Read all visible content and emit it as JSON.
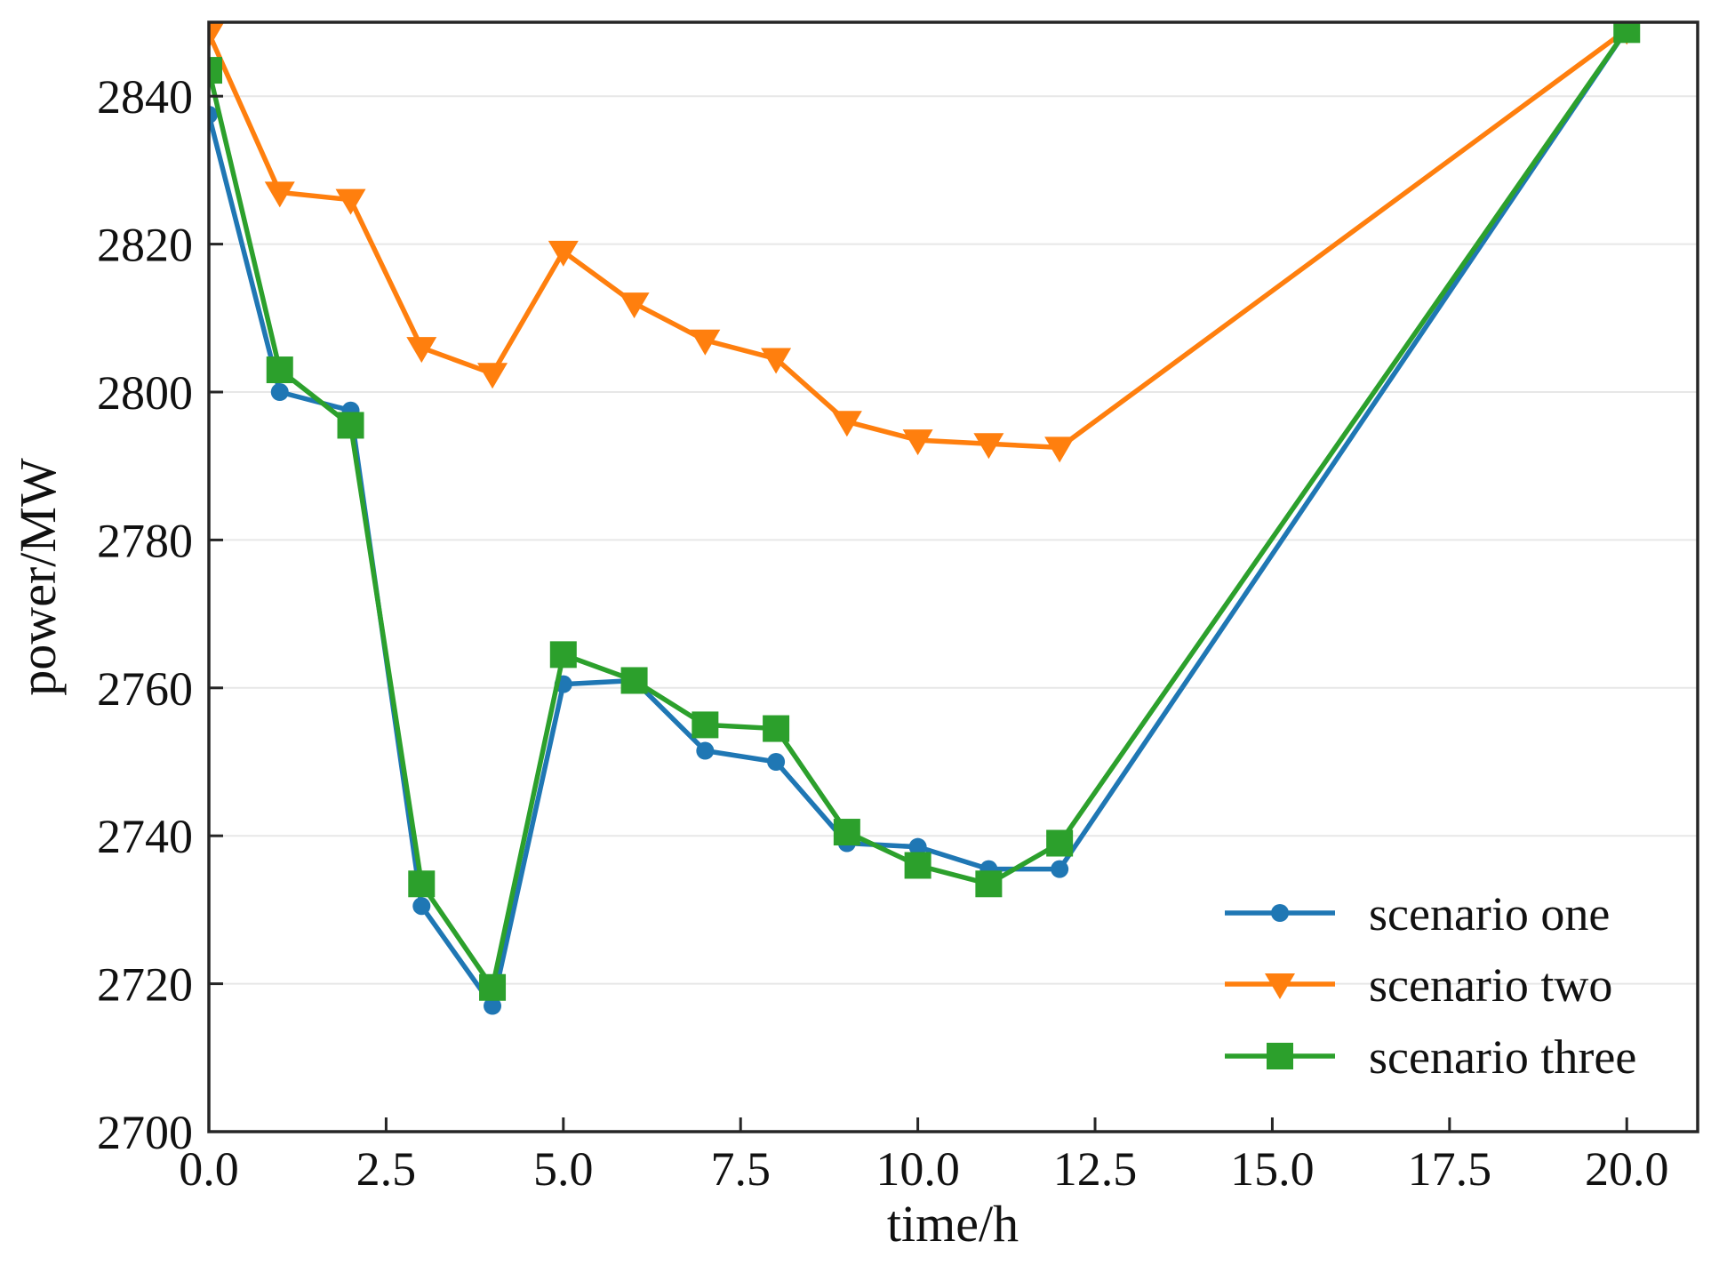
{
  "chart_data": {
    "type": "line",
    "title": "",
    "xlabel": "time/h",
    "ylabel": "power/MW",
    "xlim": [
      0,
      21
    ],
    "ylim": [
      2700,
      2850
    ],
    "xtick_labels": [
      "0.0",
      "2.5",
      "5.0",
      "7.5",
      "10.0",
      "12.5",
      "15.0",
      "17.5",
      "20.0"
    ],
    "ytick_labels": [
      "2700",
      "2720",
      "2740",
      "2760",
      "2780",
      "2800",
      "2820",
      "2840"
    ],
    "grid": "horizontal-only",
    "grid_color": "#e7e7e7",
    "axis_color": "#262626",
    "text_color": "#111111",
    "legend_position": "lower-right",
    "legend_frame": false,
    "x": [
      0,
      1,
      2,
      3,
      4,
      5,
      6,
      7,
      8,
      9,
      10,
      11,
      12,
      20
    ],
    "series": [
      {
        "name": "scenario one",
        "color": "#1f77b4",
        "marker": "circle",
        "values": [
          2837.5,
          2800,
          2797.5,
          2730.5,
          2717,
          2760.5,
          2761,
          2751.5,
          2750,
          2739,
          2738.5,
          2735.5,
          2735.5,
          2849
        ]
      },
      {
        "name": "scenario two",
        "color": "#ff7f0e",
        "marker": "triangle-down",
        "values": [
          2848.5,
          2827,
          2826,
          2806,
          2802.5,
          2819,
          2812,
          2807,
          2804.5,
          2796,
          2793.5,
          2793,
          2792.5,
          2849
        ]
      },
      {
        "name": "scenario three",
        "color": "#2ca02c",
        "marker": "square",
        "values": [
          2843.5,
          2803,
          2795.5,
          2733.5,
          2719.5,
          2764.5,
          2761,
          2755,
          2754.5,
          2740.5,
          2736,
          2733.5,
          2739,
          2849
        ]
      }
    ]
  }
}
